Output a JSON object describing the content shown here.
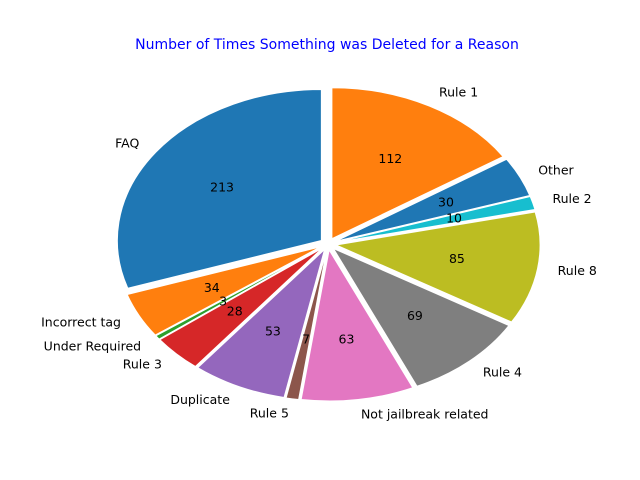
{
  "chart_data": {
    "type": "pie",
    "title": "Number of Times Something was Deleted for a Reason",
    "title_color": "#0000ff",
    "start_angle_deg": 90,
    "direction": "counterclockwise",
    "slices": [
      {
        "label": "FAQ",
        "value": 213,
        "color": "#1f77b4"
      },
      {
        "label": "Incorrect tag",
        "value": 34,
        "color": "#ff7f0e"
      },
      {
        "label": "Under Required",
        "value": 3,
        "color": "#2ca02c"
      },
      {
        "label": "Rule 3",
        "value": 28,
        "color": "#d62728"
      },
      {
        "label": "Duplicate",
        "value": 53,
        "color": "#9467bd"
      },
      {
        "label": "Rule 5",
        "value": 7,
        "color": "#8c564b"
      },
      {
        "label": "Not jailbreak related",
        "value": 63,
        "color": "#e377c2"
      },
      {
        "label": "Rule 4",
        "value": 69,
        "color": "#7f7f7f"
      },
      {
        "label": "Rule 8",
        "value": 85,
        "color": "#bcbd22"
      },
      {
        "label": "Rule 2",
        "value": 10,
        "color": "#17becf"
      },
      {
        "label": "Other",
        "value": 30,
        "color": "#1f77b4"
      },
      {
        "label": "Rule 1",
        "value": 112,
        "color": "#ff7f0e"
      }
    ]
  }
}
